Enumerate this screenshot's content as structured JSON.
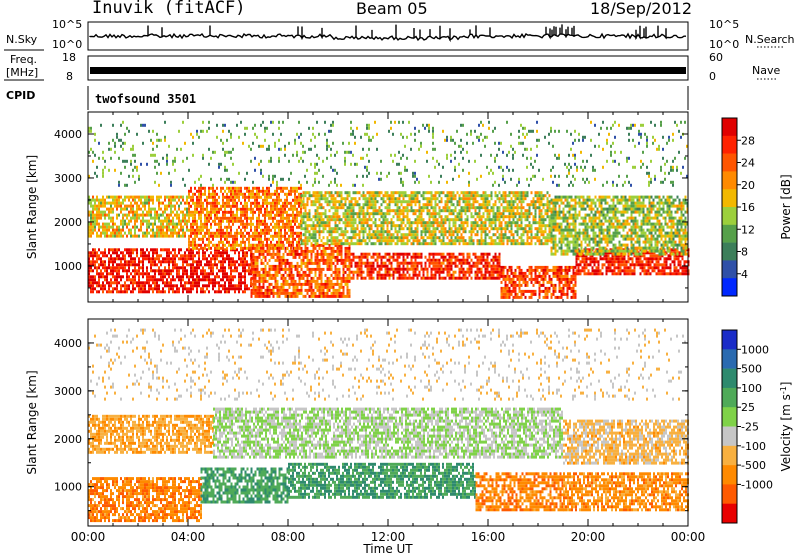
{
  "header": {
    "title": "Inuvik (fitACF)",
    "beam": "Beam 05",
    "date": "18/Sep/2012"
  },
  "aux_panels": {
    "nsky_label": "N.Sky",
    "nsky_ticks": [
      "10^5",
      "10^0"
    ],
    "nsearch_label": "N.Search",
    "nsearch_ticks": [
      "10^5",
      "10^0"
    ],
    "freq_label_1": "Freq.",
    "freq_label_2": "[MHz]",
    "freq_ticks": [
      "18",
      "8"
    ],
    "nave_label": "Nave",
    "nave_ticks": [
      "60",
      "0"
    ],
    "cpid_label": "CPID",
    "cpid_value": "twofsound 3501"
  },
  "chart_data": [
    {
      "type": "heatmap",
      "panel": "power",
      "ylabel": "Slant Range [km]",
      "xlabel": "Time UT",
      "xticks": [
        "00:00",
        "04:00",
        "08:00",
        "12:00",
        "16:00",
        "20:00",
        "00:00"
      ],
      "xlim_hours": [
        0,
        24
      ],
      "yticks": [
        1000,
        2000,
        3000,
        4000
      ],
      "ylim": [
        180,
        4500
      ],
      "colorbar": {
        "label": "Power [dB]",
        "ticks": [
          "4",
          "8",
          "12",
          "16",
          "20",
          "24",
          "28"
        ],
        "range": [
          0,
          32
        ],
        "colors": [
          "#0028ff",
          "#2f50a8",
          "#3c7e5a",
          "#56a04a",
          "#9ccf3c",
          "#f2b800",
          "#ff8a00",
          "#ff5500",
          "#ff2200",
          "#e00000"
        ]
      },
      "bands": [
        {
          "t0": 0.0,
          "t1": 6.5,
          "r0": 400,
          "r1": 1400,
          "level": 0.9
        },
        {
          "t0": 6.5,
          "t1": 10.5,
          "r0": 300,
          "r1": 1500,
          "level": 0.75
        },
        {
          "t0": 10.5,
          "t1": 16.5,
          "r0": 700,
          "r1": 1300,
          "level": 0.85
        },
        {
          "t0": 16.5,
          "t1": 19.5,
          "r0": 300,
          "r1": 1000,
          "level": 0.8
        },
        {
          "t0": 19.5,
          "t1": 24.0,
          "r0": 800,
          "r1": 1400,
          "level": 0.88
        },
        {
          "t0": 0.0,
          "t1": 4.0,
          "r0": 1700,
          "r1": 2600,
          "level": 0.55
        },
        {
          "t0": 4.0,
          "t1": 8.5,
          "r0": 1400,
          "r1": 2800,
          "level": 0.7
        },
        {
          "t0": 8.5,
          "t1": 18.5,
          "r0": 1500,
          "r1": 2700,
          "level": 0.5
        },
        {
          "t0": 18.5,
          "t1": 24.0,
          "r0": 1300,
          "r1": 2600,
          "level": 0.45
        },
        {
          "t0": 0.0,
          "t1": 24.0,
          "r0": 2800,
          "r1": 4300,
          "level": 0.35
        }
      ]
    },
    {
      "type": "heatmap",
      "panel": "velocity",
      "ylabel": "Slant Range [km]",
      "xlabel": "Time UT",
      "xticks": [
        "00:00",
        "04:00",
        "08:00",
        "12:00",
        "16:00",
        "20:00",
        "00:00"
      ],
      "xlim_hours": [
        0,
        24
      ],
      "yticks": [
        1000,
        2000,
        3000,
        4000
      ],
      "ylim": [
        180,
        4500
      ],
      "colorbar": {
        "label": "Velocity [m s^-1]",
        "ticks": [
          "1000",
          "500",
          "100",
          "25",
          "-25",
          "-100",
          "-500",
          "-1000"
        ],
        "colors": [
          "#1a2cc8",
          "#2a6ab0",
          "#2e8a6e",
          "#4faa58",
          "#7fd248",
          "#c6c6c6",
          "#f8b040",
          "#ff8a00",
          "#ff5a00",
          "#e80000"
        ]
      },
      "bands": [
        {
          "t0": 0.0,
          "t1": 4.5,
          "r0": 300,
          "r1": 1200,
          "level": -0.6
        },
        {
          "t0": 4.5,
          "t1": 8.0,
          "r0": 700,
          "r1": 1400,
          "level": 0.4
        },
        {
          "t0": 8.0,
          "t1": 15.5,
          "r0": 800,
          "r1": 1500,
          "level": 0.45
        },
        {
          "t0": 15.5,
          "t1": 19.0,
          "r0": 500,
          "r1": 1300,
          "level": -0.6
        },
        {
          "t0": 19.0,
          "t1": 24.0,
          "r0": 500,
          "r1": 1300,
          "level": -0.55
        },
        {
          "t0": 0.0,
          "t1": 5.0,
          "r0": 1700,
          "r1": 2500,
          "level": -0.4
        },
        {
          "t0": 5.0,
          "t1": 19.0,
          "r0": 1600,
          "r1": 2650,
          "level": 0.0
        },
        {
          "t0": 19.0,
          "t1": 24.0,
          "r0": 1500,
          "r1": 2400,
          "level": -0.3
        },
        {
          "t0": 0.0,
          "t1": 24.0,
          "r0": 2800,
          "r1": 4300,
          "level": -0.2
        }
      ]
    }
  ]
}
